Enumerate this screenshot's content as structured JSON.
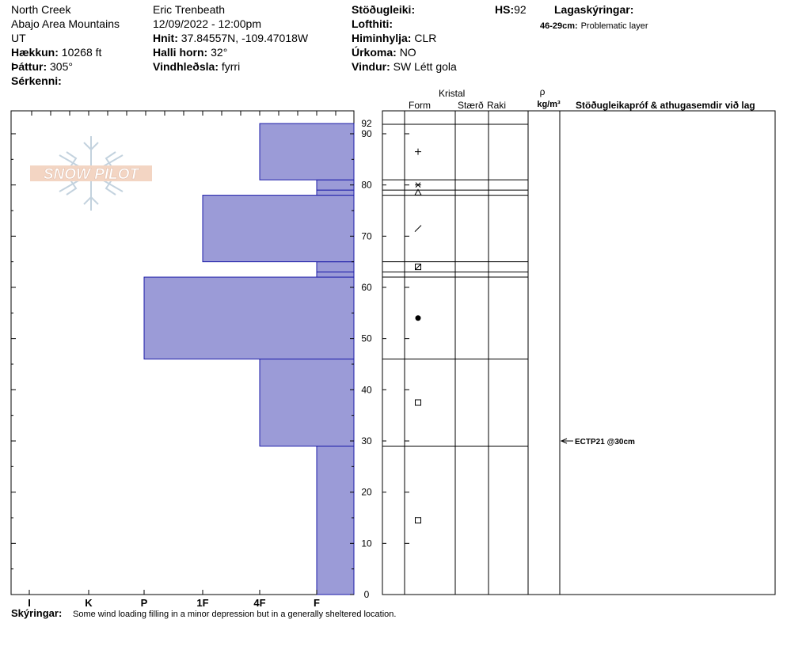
{
  "header": {
    "location": "North Creek",
    "range": "Abajo Area Mountains",
    "state": "UT",
    "elevation_label": "Hækkun:",
    "elevation_value": "10268 ft",
    "aspect_label": "Þáttur:",
    "aspect_value": "305°",
    "features_label": "Sérkenni:",
    "observer": "Eric Trenbeath",
    "datetime": "12/09/2022 - 12:00pm",
    "coords_label": "Hnit:",
    "coords_value": "37.84557N, -109.47018W",
    "slope_label": "Halli horn:",
    "slope_value": "32°",
    "wind_loading_label": "Vindhleðsla:",
    "wind_loading_value": "fyrri",
    "stability_label": "Stöðugleiki:",
    "air_temp_label": "Lofthiti:",
    "sky_label": "Himinhylja:",
    "sky_value": "CLR",
    "precip_label": "Úrkoma:",
    "precip_value": "NO",
    "wind_label": "Vindur:",
    "wind_value": "SW Létt gola",
    "hs_label": "HS:",
    "hs_value": "92",
    "legend_title": "Lagaskýringar:",
    "legend_layer": "46-29cm:",
    "legend_desc": "Problematic layer"
  },
  "logo": {
    "text": "SNOW PILOT"
  },
  "columns": {
    "kristal": "Kristal",
    "form": "Form",
    "staerd": "Stærð",
    "raki": "Raki",
    "rho": "ρ",
    "density_unit": "kg/m³",
    "tests": "Stöðugleikapróf & athugasemdir við lag"
  },
  "footer": {
    "comments_label": "Skýringar:",
    "comments_text": "Some wind loading filling in a minor depression but in a generally sheltered location."
  },
  "chart_data": {
    "type": "bar",
    "orientation": "horizontal",
    "y_range": [
      0,
      92
    ],
    "y_ticks": [
      0,
      10,
      20,
      30,
      40,
      50,
      60,
      70,
      80,
      90
    ],
    "hs_tick": "92",
    "hardness_labels": [
      "I",
      "K",
      "P",
      "1F",
      "4F",
      "F"
    ],
    "layers": [
      {
        "bottom": 0,
        "top": 29,
        "hardness": "F",
        "grain": "square",
        "gx": 0.2
      },
      {
        "bottom": 29,
        "top": 46,
        "hardness": "4F",
        "grain": "square",
        "gx": 0.2
      },
      {
        "bottom": 46,
        "top": 62,
        "hardness": "P",
        "grain": "dot",
        "gx": 0.2
      },
      {
        "bottom": 62,
        "top": 63,
        "hardness": "F",
        "grain": null,
        "gx": 0.2
      },
      {
        "bottom": 63,
        "top": 65,
        "hardness": "F",
        "grain": "square-slash",
        "gx": 0.2
      },
      {
        "bottom": 65,
        "top": 78,
        "hardness": "1F",
        "grain": "slash",
        "gx": 0.2
      },
      {
        "bottom": 78,
        "top": 79,
        "hardness": "F",
        "grain": "triangle",
        "gx": 0.2
      },
      {
        "bottom": 79,
        "top": 81,
        "hardness": "F",
        "grain": "star",
        "gx": 0.2
      },
      {
        "bottom": 81,
        "top": 92,
        "hardness": "4F",
        "grain": "plus",
        "gx": 0.2
      }
    ],
    "tests": [
      {
        "depth": 30,
        "text": "ECTP21 @30cm"
      }
    ]
  }
}
